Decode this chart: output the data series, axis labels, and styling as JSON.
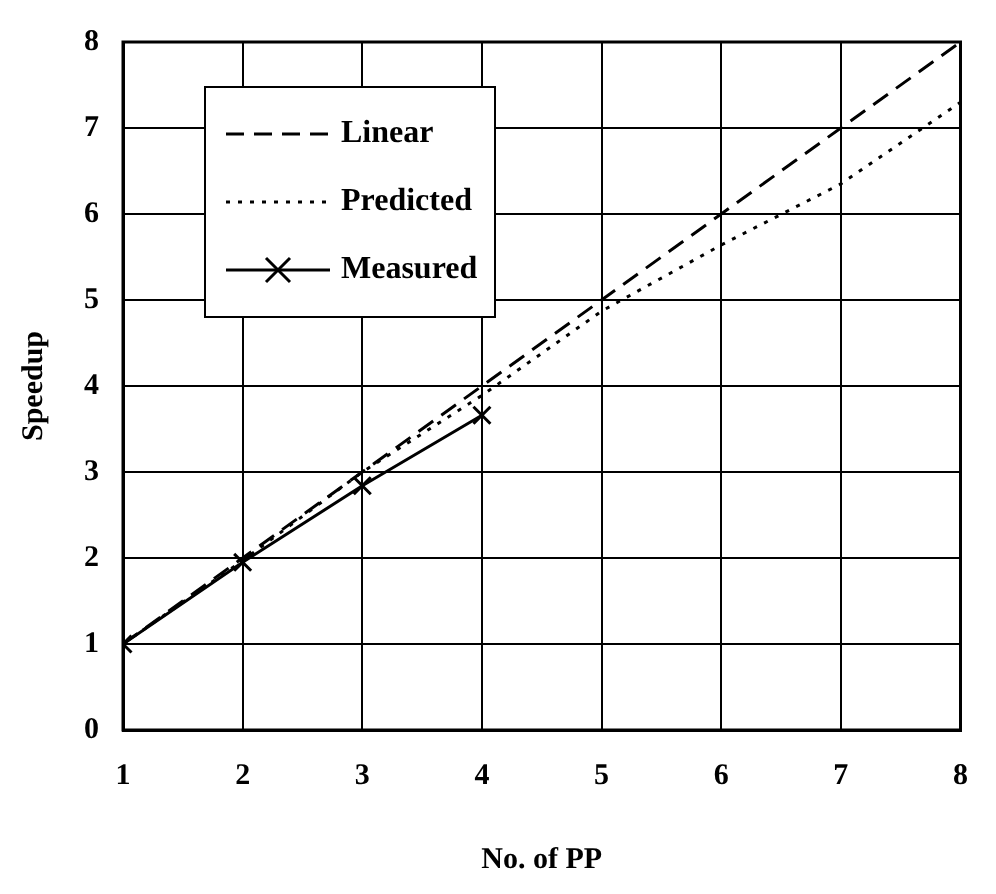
{
  "chart_data": {
    "type": "line",
    "xlabel": "No. of PP",
    "ylabel": "Speedup",
    "x": [
      1,
      2,
      3,
      4,
      5,
      6,
      7,
      8
    ],
    "series": [
      {
        "name": "Linear",
        "color": "#000000",
        "line_style": "dashed",
        "marker": "none",
        "values": [
          1,
          2,
          3,
          4,
          5,
          6,
          7,
          8
        ]
      },
      {
        "name": "Predicted",
        "color": "#000000",
        "line_style": "dotted",
        "marker": "none",
        "values": [
          1,
          1.97,
          3.0,
          3.89,
          4.87,
          5.64,
          6.35,
          7.3
        ]
      },
      {
        "name": "Measured",
        "color": "#000000",
        "line_style": "solid",
        "marker": "cross",
        "values": [
          1,
          1.95,
          2.84,
          3.66,
          null,
          null,
          null,
          null
        ]
      }
    ],
    "xlim": [
      1,
      8
    ],
    "xticks": [
      1,
      2,
      3,
      4,
      5,
      6,
      7,
      8
    ],
    "ylim": [
      0,
      8
    ],
    "yticks": [
      0,
      1,
      2,
      3,
      4,
      5,
      6,
      7,
      8
    ],
    "grid": true,
    "legend": "top left"
  }
}
